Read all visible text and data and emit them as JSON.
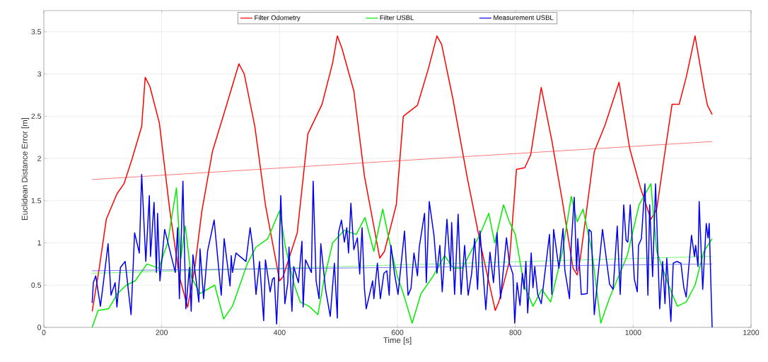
{
  "chart_data": {
    "type": "line",
    "xlabel": "Time [s]",
    "ylabel": "Euclidean Distance Error [m]",
    "xlim": [
      0,
      1200
    ],
    "ylim": [
      0,
      3.75
    ],
    "xticks": [
      0,
      200,
      400,
      600,
      800,
      1000,
      1200
    ],
    "yticks": [
      0,
      0.5,
      1,
      1.5,
      2,
      2.5,
      3,
      3.5
    ],
    "grid": true,
    "legend": "top",
    "line_style": "solid",
    "series": [
      {
        "name": "Filter Odometry",
        "color": "#ff0000",
        "x": [
          82,
          94,
          106,
          124,
          136,
          150,
          166,
          172,
          180,
          196,
          214,
          230,
          244,
          256,
          268,
          286,
          310,
          331,
          340,
          358,
          376,
          394,
          400,
          406,
          430,
          448,
          472,
          490,
          498,
          506,
          526,
          544,
          562,
          570,
          578,
          598,
          610,
          634,
          652,
          667,
          675,
          694,
          718,
          742,
          766,
          772,
          790,
          802,
          816,
          826,
          844,
          862,
          880,
          898,
          905,
          910,
          934,
          952,
          976,
          994,
          1012,
          1030,
          1040,
          1054,
          1066,
          1078,
          1090,
          1105,
          1120,
          1126,
          1134
        ],
        "values": [
          0.19,
          0.7,
          1.28,
          1.58,
          1.7,
          2.0,
          2.38,
          2.96,
          2.85,
          2.42,
          1.37,
          0.6,
          0.24,
          0.7,
          1.37,
          2.08,
          2.63,
          3.12,
          3.0,
          2.38,
          1.45,
          0.78,
          0.55,
          0.6,
          1.12,
          2.29,
          2.64,
          3.13,
          3.45,
          3.3,
          2.8,
          1.79,
          1.12,
          0.82,
          0.9,
          1.45,
          2.5,
          2.63,
          3.05,
          3.45,
          3.35,
          2.71,
          1.79,
          0.95,
          0.2,
          0.3,
          0.78,
          1.87,
          1.89,
          2.04,
          2.84,
          2.21,
          1.49,
          0.7,
          0.62,
          0.8,
          2.08,
          2.39,
          2.9,
          2.12,
          1.66,
          1.28,
          1.4,
          2.08,
          2.64,
          2.64,
          2.96,
          3.45,
          2.84,
          2.63,
          2.52
        ]
      },
      {
        "color": "#ff4040",
        "x": [
          82,
          1134
        ],
        "values": [
          1.75,
          2.2
        ]
      },
      {
        "name": "Filter USBL",
        "color": "#00ee00",
        "x": [
          82,
          92,
          110,
          125,
          140,
          155,
          175,
          195,
          210,
          225,
          232,
          240,
          250,
          265,
          290,
          305,
          320,
          345,
          360,
          380,
          400,
          410,
          425,
          435,
          450,
          465,
          475,
          490,
          510,
          530,
          545,
          560,
          575,
          590,
          600,
          610,
          625,
          640,
          660,
          680,
          695,
          710,
          740,
          755,
          765,
          780,
          790,
          800,
          815,
          830,
          845,
          860,
          880,
          895,
          905,
          915,
          930,
          945,
          960,
          975,
          990,
          1010,
          1030,
          1040,
          1060,
          1075,
          1090,
          1105,
          1120,
          1134
        ],
        "values": [
          0,
          0.2,
          0.22,
          0.4,
          0.5,
          0.55,
          0.75,
          0.7,
          1.0,
          1.65,
          0.8,
          1.2,
          0.6,
          0.4,
          0.5,
          0.1,
          0.25,
          0.75,
          0.95,
          1.05,
          1.38,
          0.95,
          0.5,
          0.3,
          0.25,
          0.15,
          0.55,
          1.0,
          1.15,
          1.1,
          1.3,
          0.9,
          1.4,
          0.9,
          0.6,
          0.4,
          0.05,
          0.4,
          0.6,
          0.85,
          0.7,
          0.7,
          1.1,
          1.35,
          1.0,
          1.45,
          1.25,
          1.1,
          0.5,
          0.25,
          0.45,
          0.3,
          0.9,
          1.55,
          1.25,
          1.4,
          0.9,
          0.05,
          0.35,
          0.6,
          0.85,
          1.45,
          1.7,
          0.9,
          0.5,
          0.25,
          0.3,
          0.5,
          0.9,
          1.05
        ]
      },
      {
        "color": "#40ee40",
        "x": [
          82,
          1134
        ],
        "values": [
          0.64,
          0.84
        ]
      },
      {
        "name": "Measurement USBL",
        "color": "#0000ee",
        "x": [
          82,
          84,
          88,
          96,
          100,
          109,
          114,
          121,
          124,
          130,
          138,
          148,
          154,
          162,
          166,
          173,
          179,
          181,
          187,
          191,
          193,
          197,
          205,
          223,
          227,
          230,
          236,
          241,
          247,
          250,
          253,
          263,
          265,
          271,
          278,
          289,
          301,
          306,
          316,
          318,
          320,
          326,
          343,
          350,
          354,
          360,
          366,
          373,
          376,
          384,
          388,
          391,
          395,
          398,
          402,
          409,
          414,
          416,
          421,
          424,
          432,
          438,
          440,
          444,
          454,
          457,
          462,
          467,
          470,
          478,
          486,
          493,
          498,
          500,
          505,
          510,
          514,
          517,
          521,
          526,
          532,
          536,
          540,
          544,
          547,
          558,
          560,
          566,
          571,
          577,
          582,
          586,
          589,
          595,
          601,
          612,
          618,
          623,
          628,
          634,
          637,
          646,
          649,
          654,
          662,
          667,
          672,
          676,
          684,
          690,
          692,
          697,
          703,
          708,
          714,
          720,
          726,
          731,
          736,
          740,
          750,
          757,
          763,
          769,
          775,
          785,
          790,
          796,
          799,
          803,
          808,
          812,
          815,
          818,
          821,
          827,
          830,
          833,
          838,
          844,
          858,
          862,
          865,
          874,
          881,
          884,
          892,
          895,
          900,
          904,
          906,
          912,
          922,
          925,
          929,
          934,
          940,
          948,
          960,
          966,
          973,
          978,
          984,
          988,
          991,
          995,
          1002,
          1007,
          1009,
          1014,
          1020,
          1025,
          1028,
          1033,
          1038,
          1045,
          1050,
          1054,
          1057,
          1064,
          1068,
          1074,
          1081,
          1086,
          1090,
          1099,
          1104,
          1106,
          1110,
          1112,
          1118,
          1124,
          1127,
          1129,
          1134
        ],
        "values": [
          0.29,
          0.53,
          0.61,
          0.25,
          0.47,
          0.99,
          0.38,
          0.53,
          0.24,
          0.71,
          0.78,
          0.15,
          1.12,
          0.88,
          1.81,
          0.78,
          1.56,
          0.84,
          1.48,
          0.65,
          1.35,
          0.55,
          1.16,
          0.65,
          1.18,
          0.34,
          1.73,
          0.22,
          0.71,
          0.19,
          0.86,
          0.3,
          0.93,
          0.34,
          0.91,
          1.27,
          0.38,
          1.05,
          0.49,
          0.85,
          0.65,
          0.88,
          0.78,
          1.18,
          0.97,
          0.39,
          0.78,
          0.08,
          0.8,
          0.42,
          0.57,
          0.59,
          0.04,
          0.53,
          1.56,
          0.28,
          0.53,
          0.95,
          0.19,
          0.72,
          0.53,
          1.02,
          0.24,
          0.8,
          0.65,
          1.73,
          0.55,
          0.34,
          0.99,
          0.45,
          0.13,
          0.76,
          0.11,
          1.12,
          1.27,
          1.01,
          1.18,
          0.88,
          1.47,
          0.92,
          1.06,
          0.63,
          1.18,
          0.46,
          0.22,
          0.55,
          0.34,
          0.76,
          0.34,
          0.64,
          0.67,
          0.38,
          0.97,
          0.64,
          0.39,
          1.14,
          0.38,
          0.46,
          0.88,
          0.61,
          0.95,
          1.35,
          0.53,
          1.49,
          1.09,
          0.64,
          0.97,
          0.42,
          1.28,
          0.67,
          1.24,
          0.39,
          1.34,
          0.39,
          0.97,
          0.38,
          0.64,
          1.05,
          0.45,
          1.14,
          0.21,
          0.89,
          0.53,
          1.12,
          0.34,
          1.06,
          0.76,
          0.63,
          0.05,
          0.53,
          0.26,
          0.64,
          0.45,
          0.78,
          0.17,
          0.88,
          0.47,
          0.72,
          0.39,
          0.28,
          1.1,
          0.39,
          1.16,
          0.7,
          1.17,
          0.68,
          0.34,
          0.99,
          1.54,
          0.67,
          1.05,
          0.39,
          0.4,
          1.16,
          1.13,
          0.15,
          0.59,
          1.16,
          0.51,
          0.45,
          1.2,
          0.39,
          1.45,
          1.03,
          1.01,
          1.45,
          0.57,
          0.42,
          0.97,
          1.05,
          1.7,
          0.38,
          1.45,
          0.6,
          1.7,
          0.22,
          0.78,
          0.28,
          0.82,
          0.07,
          0.76,
          0.78,
          0.76,
          0.47,
          0.36,
          1.09,
          0.84,
          0.97,
          0.72,
          1.49,
          0.45,
          1.23,
          1.06,
          1.23,
          0
        ]
      },
      {
        "color": "#4040ee",
        "x": [
          82,
          1134
        ],
        "values": [
          0.67,
          0.75
        ]
      }
    ]
  }
}
